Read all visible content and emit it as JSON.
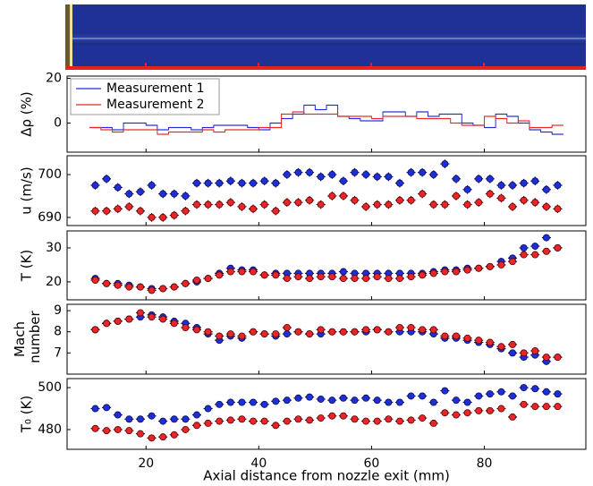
{
  "chart_data": [
    {
      "type": "step",
      "ylabel": "Δρ (%)",
      "xlim": [
        6,
        98
      ],
      "xticks": [
        20,
        40,
        60,
        80
      ],
      "ylim": [
        -13,
        21
      ],
      "yticks": [
        0,
        20
      ],
      "legend": "upper left",
      "x": [
        11,
        13,
        15,
        17,
        19,
        21,
        23,
        25,
        27,
        29,
        31,
        33,
        35,
        37,
        39,
        41,
        43,
        45,
        47,
        49,
        51,
        53,
        55,
        57,
        59,
        61,
        63,
        65,
        67,
        69,
        71,
        73,
        75,
        77,
        79,
        81,
        83,
        85,
        87,
        89,
        91,
        93
      ],
      "series": [
        {
          "name": "Measurement 1",
          "color": "#1f2fd6",
          "values": [
            -2,
            -2,
            -3,
            0,
            0,
            -1,
            -3,
            -2,
            -2,
            -3,
            -2,
            -1,
            -1,
            -1,
            -2,
            -3,
            0,
            2,
            4,
            8,
            6,
            8,
            3,
            2,
            1,
            1,
            5,
            5,
            3,
            5,
            3,
            4,
            4,
            0,
            -1,
            -2,
            4,
            3,
            0,
            -3,
            -4,
            -5
          ]
        },
        {
          "name": "Measurement 2",
          "color": "#e8262a",
          "values": [
            -2,
            -3,
            -4,
            -3,
            -3,
            -3,
            -5,
            -4,
            -4,
            -4,
            -3,
            -4,
            -3,
            -3,
            -3,
            -2,
            -2,
            4,
            5,
            4,
            4,
            4,
            3,
            3,
            3,
            2,
            3,
            3,
            3,
            2,
            2,
            2,
            0,
            -1,
            -1,
            3,
            2,
            0,
            1,
            -2,
            -2,
            -1
          ]
        }
      ]
    },
    {
      "type": "errorbar",
      "ylabel": "u (m/s)",
      "xlim": [
        6,
        98
      ],
      "xticks": [
        20,
        40,
        60,
        80
      ],
      "ylim": [
        688.1,
        704.4
      ],
      "yticks": [
        690,
        700
      ],
      "xerror": 0.8,
      "x": [
        11,
        13,
        15,
        17,
        19,
        21,
        23,
        25,
        27,
        29,
        31,
        33,
        35,
        37,
        39,
        41,
        43,
        45,
        47,
        49,
        51,
        53,
        55,
        57,
        59,
        61,
        63,
        65,
        67,
        69,
        71,
        73,
        75,
        77,
        79,
        81,
        83,
        85,
        87,
        89,
        91,
        93
      ],
      "series": [
        {
          "color": "#1f2fd6",
          "error": 1,
          "values": [
            697.5,
            699,
            697,
            695.5,
            696,
            697.5,
            695.5,
            695.5,
            695,
            698,
            698,
            698,
            698.5,
            698,
            698,
            698.5,
            698,
            700,
            700.5,
            700.5,
            699.5,
            700,
            698.5,
            700.5,
            700,
            699.5,
            699.5,
            698,
            700.5,
            700.5,
            700,
            702.5,
            699,
            696.5,
            699,
            699,
            697.5,
            697.5,
            698,
            698.5,
            696.5,
            697.5
          ]
        },
        {
          "color": "#e8262a",
          "error": 1,
          "values": [
            691.5,
            691.5,
            692,
            692.5,
            691.5,
            690,
            690,
            690.5,
            691.5,
            693,
            693,
            693,
            693.5,
            692.5,
            692,
            693,
            691.5,
            693.5,
            693.5,
            694,
            693,
            695,
            695,
            694,
            692.5,
            693,
            693,
            694,
            694,
            695.5,
            693,
            693,
            695,
            693,
            693.5,
            695.5,
            694.5,
            692.5,
            694,
            693.5,
            692.5,
            692
          ]
        }
      ]
    },
    {
      "type": "errorbar",
      "ylabel": "T (K)",
      "xlim": [
        6,
        98
      ],
      "xticks": [
        20,
        40,
        60,
        80
      ],
      "ylim": [
        14.7,
        35
      ],
      "yticks": [
        20,
        30
      ],
      "xerror": 0.8,
      "x": [
        11,
        13,
        15,
        17,
        19,
        21,
        23,
        25,
        27,
        29,
        31,
        33,
        35,
        37,
        39,
        41,
        43,
        45,
        47,
        49,
        51,
        53,
        55,
        57,
        59,
        61,
        63,
        65,
        67,
        69,
        71,
        73,
        75,
        77,
        79,
        81,
        83,
        85,
        87,
        89,
        91,
        93
      ],
      "series": [
        {
          "color": "#1f2fd6",
          "error": 1,
          "values": [
            21,
            19.5,
            19.5,
            19,
            18.5,
            18,
            18,
            18.5,
            19.5,
            20,
            21,
            22.5,
            24,
            23.5,
            23.5,
            22,
            22.5,
            22.5,
            22.5,
            22.5,
            22.5,
            22.5,
            23,
            22.5,
            22.5,
            22.5,
            22.5,
            22.5,
            22.5,
            22.5,
            23,
            23.5,
            23.5,
            24,
            24,
            24.5,
            26,
            27,
            30,
            30.5,
            33,
            30
          ]
        },
        {
          "color": "#e8262a",
          "error": 1,
          "values": [
            20.5,
            19.5,
            19,
            18.5,
            18.5,
            17.5,
            18,
            18.5,
            19.5,
            20.5,
            21,
            22,
            23,
            23,
            23,
            22,
            22,
            21,
            21.5,
            21,
            21.5,
            21.5,
            21,
            21,
            21,
            21.5,
            21,
            21,
            21.5,
            22,
            22.5,
            23,
            23,
            23.5,
            24,
            24.5,
            25,
            26,
            28,
            28,
            29,
            30
          ]
        }
      ]
    },
    {
      "type": "errorbar",
      "ylabel": "Mach number",
      "xlim": [
        6,
        98
      ],
      "xticks": [
        20,
        40,
        60,
        80
      ],
      "ylim": [
        6.0,
        9.3
      ],
      "yticks": [
        7,
        8,
        9
      ],
      "xerror": 0.8,
      "x": [
        11,
        13,
        15,
        17,
        19,
        21,
        23,
        25,
        27,
        29,
        31,
        33,
        35,
        37,
        39,
        41,
        43,
        45,
        47,
        49,
        51,
        53,
        55,
        57,
        59,
        61,
        63,
        65,
        67,
        69,
        71,
        73,
        75,
        77,
        79,
        81,
        83,
        85,
        87,
        89,
        91,
        93
      ],
      "series": [
        {
          "color": "#1f2fd6",
          "error": 0.15,
          "values": [
            8.1,
            8.4,
            8.5,
            8.6,
            8.7,
            8.8,
            8.7,
            8.5,
            8.4,
            8.2,
            7.9,
            7.6,
            7.8,
            7.7,
            8.0,
            7.9,
            7.8,
            7.9,
            8.0,
            7.9,
            7.9,
            8.0,
            8.0,
            8.0,
            8.0,
            8.1,
            8.0,
            8.0,
            8.0,
            8.0,
            7.9,
            7.7,
            7.7,
            7.6,
            7.5,
            7.4,
            7.2,
            7.0,
            6.8,
            6.9,
            6.6,
            6.8
          ]
        },
        {
          "color": "#e8262a",
          "error": 0.15,
          "values": [
            8.1,
            8.4,
            8.5,
            8.6,
            8.9,
            8.7,
            8.6,
            8.4,
            8.2,
            8.1,
            8.0,
            7.8,
            7.9,
            7.8,
            8.0,
            7.9,
            7.9,
            8.2,
            8.0,
            7.9,
            8.1,
            8.0,
            8.0,
            8.0,
            8.1,
            8.1,
            8.0,
            8.2,
            8.2,
            8.1,
            8.1,
            7.8,
            7.8,
            7.7,
            7.6,
            7.5,
            7.3,
            7.4,
            7.0,
            7.1,
            6.8,
            6.8
          ]
        }
      ]
    },
    {
      "type": "errorbar",
      "ylabel": "T₀ (K)",
      "xlabel": "Axial distance from nozzle exit (mm)",
      "xlim": [
        6,
        98
      ],
      "xticks": [
        20,
        40,
        60,
        80
      ],
      "ylim": [
        470.6,
        504.3
      ],
      "yticks": [
        480,
        500
      ],
      "xerror": 0.8,
      "x": [
        11,
        13,
        15,
        17,
        19,
        21,
        23,
        25,
        27,
        29,
        31,
        33,
        35,
        37,
        39,
        41,
        43,
        45,
        47,
        49,
        51,
        53,
        55,
        57,
        59,
        61,
        63,
        65,
        67,
        69,
        71,
        73,
        75,
        77,
        79,
        81,
        83,
        85,
        87,
        89,
        91,
        93
      ],
      "series": [
        {
          "color": "#1f2fd6",
          "error": 1.5,
          "values": [
            490,
            490.5,
            487,
            485,
            485,
            486.5,
            484,
            485,
            485,
            487,
            490,
            492,
            493,
            493,
            493,
            492,
            493.5,
            494,
            495,
            495.5,
            494.5,
            494,
            495,
            494,
            495,
            494,
            493,
            493,
            496,
            496,
            493,
            498.5,
            494,
            493,
            496,
            497,
            498,
            496,
            500,
            499.5,
            498,
            497
          ]
        },
        {
          "color": "#e8262a",
          "error": 1.5,
          "values": [
            480.5,
            479.5,
            480,
            479.5,
            478,
            476,
            476.5,
            477.5,
            480,
            482,
            483,
            484,
            484.5,
            485,
            484,
            484,
            482,
            484,
            485,
            484.5,
            485.5,
            486.5,
            486.5,
            485,
            484,
            484,
            485,
            484,
            484.5,
            485.5,
            483,
            488,
            487,
            488,
            489,
            489,
            490,
            486,
            492,
            491,
            491,
            491
          ]
        }
      ]
    }
  ]
}
